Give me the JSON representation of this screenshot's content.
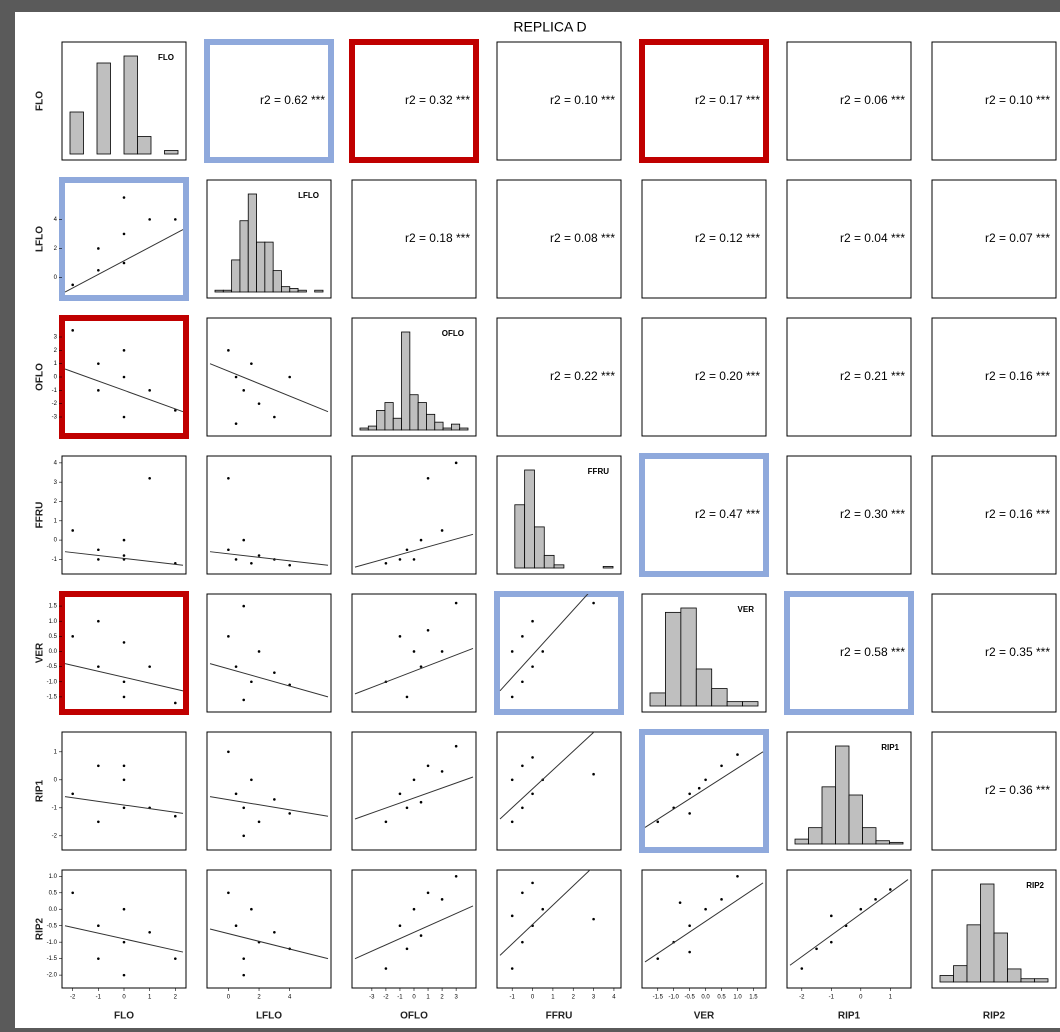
{
  "chart_data": {
    "type": "scatter-matrix",
    "title": "REPLICA D",
    "variables": [
      {
        "name": "FLO",
        "lim": [
          -2.3,
          2.3
        ],
        "ticks": [
          -2,
          -1,
          0,
          1,
          2
        ],
        "bins": [
          -2.25,
          -1.75,
          -1.25,
          -0.75,
          -0.25,
          0.25,
          0.75,
          1.25,
          1.75
        ],
        "counts": [
          12,
          0,
          26,
          0,
          28,
          5,
          0,
          1
        ]
      },
      {
        "name": "LFLO",
        "lim": [
          -1.2,
          6.5
        ],
        "ticks": [
          0,
          2,
          4
        ],
        "bins": [
          -1,
          -0.5,
          0,
          0.5,
          1,
          1.5,
          2,
          2.5,
          3,
          3.5,
          4,
          4.5,
          5,
          5.5
        ],
        "counts": [
          1,
          1,
          18,
          40,
          55,
          28,
          28,
          12,
          3,
          2,
          1,
          0,
          1
        ]
      },
      {
        "name": "OFLO",
        "lim": [
          -4.2,
          4.2
        ],
        "ticks": [
          -3,
          -2,
          -1,
          0,
          1,
          2,
          3
        ],
        "bins": [
          -3.5,
          -3,
          -2.5,
          -2,
          -1.5,
          -1,
          -0.5,
          0,
          0.5,
          1,
          1.5,
          2,
          2.5,
          3
        ],
        "counts": [
          1,
          2,
          10,
          14,
          6,
          50,
          18,
          14,
          8,
          4,
          1,
          3,
          1
        ]
      },
      {
        "name": "FFRU",
        "lim": [
          -1.6,
          4.2
        ],
        "ticks": [
          -1,
          0,
          1,
          2,
          3,
          4
        ],
        "bins": [
          -1.5,
          -1,
          -0.5,
          0,
          0.5,
          1,
          1.5,
          2,
          2.5,
          3,
          3.5,
          4
        ],
        "counts": [
          0,
          40,
          62,
          26,
          8,
          2,
          0,
          0,
          0,
          0,
          1
        ]
      },
      {
        "name": "VER",
        "lim": [
          -1.9,
          1.8
        ],
        "ticks": [
          {
            "value": -1.5,
            "label": "-1.5"
          },
          {
            "value": -1,
            "label": "-1.0"
          },
          {
            "value": -0.5,
            "label": "-0.5"
          },
          {
            "value": 0,
            "label": "0.0"
          },
          {
            "value": 0.5,
            "label": "0.5"
          },
          {
            "value": 1,
            "label": "1.0"
          },
          {
            "value": 1.5,
            "label": "1.5"
          }
        ],
        "bins": [
          -1.75,
          -1.25,
          -0.75,
          -0.25,
          0.25,
          0.75,
          1.25,
          1.75
        ],
        "counts": [
          6,
          43,
          45,
          17,
          8,
          2,
          2
        ]
      },
      {
        "name": "RIP1",
        "lim": [
          -2.4,
          1.6
        ],
        "ticks": [
          -2,
          -1,
          0,
          1
        ],
        "bins": [
          -2.5,
          -2,
          -1.5,
          -1,
          -0.5,
          0,
          0.5,
          1,
          1.5
        ],
        "counts": [
          3,
          10,
          35,
          60,
          30,
          10,
          2,
          1
        ]
      },
      {
        "name": "RIP2",
        "lim": [
          -2.3,
          1.1
        ],
        "ticks": [
          {
            "value": -2,
            "label": "-2.0"
          },
          {
            "value": -1.5,
            "label": "-1.5"
          },
          {
            "value": -1,
            "label": "-1.0"
          },
          {
            "value": -0.5,
            "label": "-0.5"
          },
          {
            "value": 0,
            "label": "0.0"
          },
          {
            "value": 0.5,
            "label": "0.5"
          },
          {
            "value": 1,
            "label": "1.0"
          }
        ],
        "bins": [
          -2.25,
          -1.75,
          -1.25,
          -0.75,
          -0.25,
          0.25,
          0.75,
          1.25,
          1.75
        ],
        "counts": [
          4,
          10,
          35,
          60,
          30,
          8,
          2,
          2
        ]
      }
    ],
    "r2_labels": [
      [
        null,
        "r2 = 0.62 ***",
        "r2 = 0.32 ***",
        "r2 = 0.10 ***",
        "r2 = 0.17 ***",
        "r2 = 0.06 ***",
        "r2 = 0.10 ***"
      ],
      [
        null,
        null,
        "r2 = 0.18 ***",
        "r2 = 0.08 ***",
        "r2 = 0.12 ***",
        "r2 = 0.04 ***",
        "r2 = 0.07 ***"
      ],
      [
        null,
        null,
        null,
        "r2 = 0.22 ***",
        "r2 = 0.20 ***",
        "r2 = 0.21 ***",
        "r2 = 0.16 ***"
      ],
      [
        null,
        null,
        null,
        null,
        "r2 = 0.47 ***",
        "r2 = 0.30 ***",
        "r2 = 0.16 ***"
      ],
      [
        null,
        null,
        null,
        null,
        null,
        "r2 = 0.58 ***",
        "r2 = 0.35 ***"
      ],
      [
        null,
        null,
        null,
        null,
        null,
        null,
        "r2 = 0.36 ***"
      ],
      [
        null,
        null,
        null,
        null,
        null,
        null,
        null
      ]
    ],
    "highlight": [
      [
        null,
        "#8fa9dc",
        "#c00000",
        null,
        "#c00000",
        null,
        null
      ],
      [
        "#8fa9dc",
        null,
        null,
        null,
        null,
        null,
        null
      ],
      [
        "#c00000",
        null,
        null,
        null,
        null,
        null,
        null
      ],
      [
        null,
        null,
        null,
        null,
        "#8fa9dc",
        null,
        null
      ],
      [
        "#c00000",
        null,
        null,
        "#8fa9dc",
        null,
        "#8fa9dc",
        null
      ],
      [
        null,
        null,
        null,
        null,
        "#8fa9dc",
        null,
        null
      ],
      [
        null,
        null,
        null,
        null,
        null,
        null,
        null
      ]
    ],
    "scatter": [
      [
        null,
        null,
        null,
        null,
        null,
        null,
        null
      ],
      [
        {
          "x": [
            -2,
            -1,
            -1,
            0,
            0,
            1,
            2,
            0
          ],
          "y": [
            -0.5,
            0.5,
            2,
            1,
            3,
            4,
            4,
            5.5
          ],
          "fit": [
            -1.0,
            3.3
          ]
        },
        null,
        null,
        null,
        null,
        null,
        null
      ],
      [
        {
          "x": [
            -2,
            -1,
            -1,
            0,
            0,
            1,
            2,
            0
          ],
          "y": [
            3.5,
            1,
            -1,
            0,
            -3,
            -1,
            -2.5,
            2
          ],
          "fit": [
            0.6,
            -2.6
          ]
        },
        {
          "x": [
            0,
            0.5,
            1,
            1.5,
            2,
            3,
            4,
            0.5
          ],
          "y": [
            2,
            0,
            -1,
            1,
            -2,
            -3,
            0,
            -3.5
          ],
          "fit": [
            1,
            -2.6
          ]
        },
        null,
        null,
        null,
        null,
        null
      ],
      [
        {
          "x": [
            -2,
            -1,
            -1,
            0,
            0,
            1,
            2,
            0
          ],
          "y": [
            0.5,
            -0.5,
            -1,
            -1,
            0,
            3.2,
            -1.2,
            -0.8
          ],
          "fit": [
            -0.6,
            -1.3
          ]
        },
        {
          "x": [
            0,
            0.5,
            1,
            1.5,
            2,
            3,
            4,
            0
          ],
          "y": [
            -0.5,
            -1,
            0,
            -1.2,
            -0.8,
            -1,
            -1.3,
            3.2
          ],
          "fit": [
            -0.6,
            -1.3
          ]
        },
        {
          "x": [
            -2,
            -1,
            -0.5,
            0,
            0.5,
            1,
            2,
            3
          ],
          "y": [
            -1.2,
            -1,
            -0.5,
            -1,
            0,
            3.2,
            0.5,
            4
          ],
          "fit": [
            -1.4,
            0.3
          ]
        },
        null,
        null,
        null,
        null
      ],
      [
        {
          "x": [
            -2,
            -1,
            -1,
            0,
            0,
            1,
            2,
            0
          ],
          "y": [
            0.5,
            -0.5,
            1,
            -1,
            0.3,
            -0.5,
            -1.7,
            -1.5
          ],
          "fit": [
            -0.4,
            -1.3
          ]
        },
        {
          "x": [
            0,
            0.5,
            1,
            1.5,
            2,
            3,
            4,
            1
          ],
          "y": [
            0.5,
            -0.5,
            1.5,
            -1,
            0,
            -0.7,
            -1.1,
            -1.6
          ],
          "fit": [
            -0.4,
            -1.5
          ]
        },
        {
          "x": [
            -2,
            -1,
            -0.5,
            0,
            0.5,
            1,
            2,
            3
          ],
          "y": [
            -1,
            0.5,
            -1.5,
            0,
            -0.5,
            0.7,
            0,
            1.6
          ],
          "fit": [
            -1.4,
            0.1
          ]
        },
        {
          "x": [
            -1,
            -1,
            -0.5,
            -0.5,
            0,
            0,
            0.5,
            3
          ],
          "y": [
            -1.5,
            0,
            -1,
            0.5,
            -0.5,
            1,
            0,
            1.6
          ],
          "fit": [
            -1.3,
            3.0
          ]
        },
        null,
        null,
        null
      ],
      [
        {
          "x": [
            -2,
            -1,
            -1,
            0,
            0,
            1,
            2,
            0
          ],
          "y": [
            -0.5,
            0.5,
            -1.5,
            0,
            -1,
            -1,
            -1.3,
            0.5
          ],
          "fit": [
            -0.6,
            -1.2
          ]
        },
        {
          "x": [
            0,
            0.5,
            1,
            1.5,
            2,
            3,
            4,
            1
          ],
          "y": [
            1,
            -0.5,
            -1,
            0,
            -1.5,
            -0.7,
            -1.2,
            -2
          ],
          "fit": [
            -0.6,
            -1.3
          ]
        },
        {
          "x": [
            -2,
            -1,
            -0.5,
            0,
            0.5,
            1,
            2,
            3
          ],
          "y": [
            -1.5,
            -0.5,
            -1,
            0,
            -0.8,
            0.5,
            0.3,
            1.2
          ],
          "fit": [
            -1.4,
            0.1
          ]
        },
        {
          "x": [
            -1,
            -1,
            -0.5,
            -0.5,
            0,
            0,
            0.5,
            3
          ],
          "y": [
            -1.5,
            0,
            -1,
            0.5,
            -0.5,
            0.8,
            0,
            0.2
          ],
          "fit": [
            -1.4,
            2.5
          ]
        },
        {
          "x": [
            -1.5,
            -1,
            -0.5,
            -0.5,
            0,
            0.5,
            1,
            -0.2
          ],
          "y": [
            -1.5,
            -1,
            -0.5,
            -1.2,
            0,
            0.5,
            0.9,
            -0.3
          ],
          "fit": [
            -1.7,
            1.0
          ]
        },
        null,
        null
      ],
      [
        {
          "x": [
            -2,
            -1,
            -1,
            0,
            0,
            1,
            2,
            0
          ],
          "y": [
            0.5,
            -0.5,
            -1.5,
            0,
            -1,
            -0.7,
            -1.5,
            -2
          ],
          "fit": [
            -0.5,
            -1.3
          ]
        },
        {
          "x": [
            0,
            0.5,
            1,
            1.5,
            2,
            3,
            4,
            1
          ],
          "y": [
            0.5,
            -0.5,
            -1.5,
            0,
            -1,
            -0.7,
            -1.2,
            -2
          ],
          "fit": [
            -0.6,
            -1.5
          ]
        },
        {
          "x": [
            -2,
            -1,
            -0.5,
            0,
            0.5,
            1,
            2,
            3
          ],
          "y": [
            -1.8,
            -0.5,
            -1.2,
            0,
            -0.8,
            0.5,
            0.3,
            1
          ],
          "fit": [
            -1.5,
            0.1
          ]
        },
        {
          "x": [
            -1,
            -1,
            -0.5,
            -0.5,
            0,
            0,
            0.5,
            3
          ],
          "y": [
            -1.8,
            -0.2,
            -1,
            0.5,
            -0.5,
            0.8,
            0,
            -0.3
          ],
          "fit": [
            -1.4,
            2.0
          ]
        },
        {
          "x": [
            -1.5,
            -1,
            -0.5,
            -0.5,
            0,
            0.5,
            1,
            -0.8
          ],
          "y": [
            -1.5,
            -1,
            -0.5,
            -1.3,
            0,
            0.3,
            1,
            0.2
          ],
          "fit": [
            -1.6,
            0.8
          ]
        },
        {
          "x": [
            -2,
            -1.5,
            -1,
            -0.5,
            -1,
            0,
            0.5,
            1
          ],
          "y": [
            -1.8,
            -1.2,
            -1,
            -0.5,
            -0.2,
            0,
            0.3,
            0.6
          ],
          "fit": [
            -1.7,
            0.9
          ]
        },
        null
      ]
    ]
  }
}
